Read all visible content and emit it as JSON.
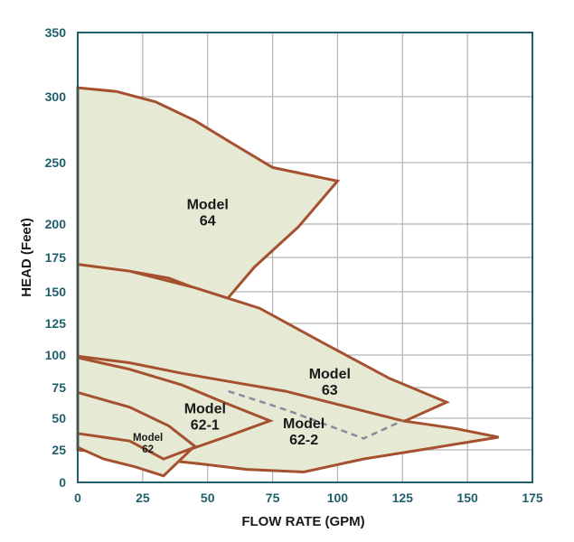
{
  "chart_data": {
    "type": "area",
    "title": "",
    "xlabel": "FLOW RATE (GPM)",
    "ylabel": "HEAD (Feet)",
    "xlim": [
      0,
      175
    ],
    "ylim": [
      0,
      350
    ],
    "xticks": [
      "0",
      "25",
      "50",
      "75",
      "100",
      "125",
      "150",
      "175"
    ],
    "xtick_values": [
      0,
      25,
      50,
      75,
      100,
      125,
      150,
      175
    ],
    "yticks": [
      "0",
      "25",
      "50",
      "75",
      "100",
      "125",
      "150",
      "175",
      "200",
      "250",
      "300",
      "350"
    ],
    "ytick_values": [
      0,
      25,
      50,
      75,
      100,
      125,
      150,
      175,
      200,
      250,
      300,
      350
    ],
    "grid": true,
    "colors": {
      "region_fill": "#e6e9d3",
      "region_stroke": "#a5512f",
      "grid": "#b3b3b3",
      "frame": "#1f5f6b",
      "tick_text": "#1f5f6b",
      "dashed": "#8a8a9c"
    },
    "regions": [
      {
        "name": "Model 64",
        "label_lines": [
          "Model",
          "64"
        ],
        "label_at": [
          50,
          212
        ],
        "points": [
          [
            0,
            307
          ],
          [
            15,
            304
          ],
          [
            30,
            296
          ],
          [
            45,
            282
          ],
          [
            60,
            264
          ],
          [
            75,
            246
          ],
          [
            100,
            235
          ],
          [
            85,
            198
          ],
          [
            68,
            168
          ],
          [
            57,
            143
          ],
          [
            50,
            149
          ],
          [
            35,
            160
          ],
          [
            20,
            165
          ],
          [
            0,
            169
          ]
        ]
      },
      {
        "name": "Model 63",
        "label_lines": [
          "Model",
          "63"
        ],
        "label_at": [
          97,
          82
        ],
        "points": [
          [
            0,
            170
          ],
          [
            20,
            165
          ],
          [
            45,
            153
          ],
          [
            70,
            137
          ],
          [
            95,
            109
          ],
          [
            120,
            82
          ],
          [
            142,
            63
          ],
          [
            125,
            47
          ],
          [
            100,
            58
          ],
          [
            70,
            72
          ],
          [
            45,
            82
          ],
          [
            20,
            92
          ],
          [
            0,
            99
          ]
        ]
      },
      {
        "name": "Model 62-2",
        "label_lines": [
          "Model",
          "62-2"
        ],
        "label_at": [
          87,
          42
        ],
        "points": [
          [
            0,
            99
          ],
          [
            20,
            94
          ],
          [
            40,
            86
          ],
          [
            60,
            79
          ],
          [
            80,
            72
          ],
          [
            125,
            48
          ],
          [
            145,
            42
          ],
          [
            162,
            35
          ],
          [
            135,
            26
          ],
          [
            110,
            18
          ],
          [
            87,
            8
          ],
          [
            65,
            10
          ],
          [
            48,
            14
          ],
          [
            30,
            18
          ],
          [
            15,
            22
          ],
          [
            0,
            25
          ]
        ]
      },
      {
        "name": "Model 62-1",
        "label_lines": [
          "Model",
          "62-1"
        ],
        "label_at": [
          49,
          54
        ],
        "points": [
          [
            0,
            98
          ],
          [
            20,
            89
          ],
          [
            40,
            77
          ],
          [
            55,
            64
          ],
          [
            74,
            48
          ],
          [
            58,
            36
          ],
          [
            44,
            26
          ],
          [
            33,
            12
          ],
          [
            20,
            19
          ],
          [
            0,
            29
          ]
        ]
      },
      {
        "name": "Model 62",
        "label_lines": [
          "Model",
          "62"
        ],
        "label_at": [
          27,
          32
        ],
        "points": [
          [
            0,
            71
          ],
          [
            20,
            59
          ],
          [
            35,
            44
          ],
          [
            45,
            28
          ],
          [
            33,
            5
          ],
          [
            22,
            12
          ],
          [
            10,
            18
          ],
          [
            0,
            27
          ]
        ]
      },
      {
        "name": "",
        "label_lines": [],
        "label_at": null,
        "points": [
          [
            0,
            38
          ],
          [
            20,
            32
          ],
          [
            33,
            18
          ],
          [
            45,
            27
          ]
        ]
      }
    ],
    "dashed_line": {
      "points": [
        [
          58,
          72
        ],
        [
          80,
          57
        ],
        [
          110,
          34
        ],
        [
          125,
          48
        ]
      ]
    }
  }
}
